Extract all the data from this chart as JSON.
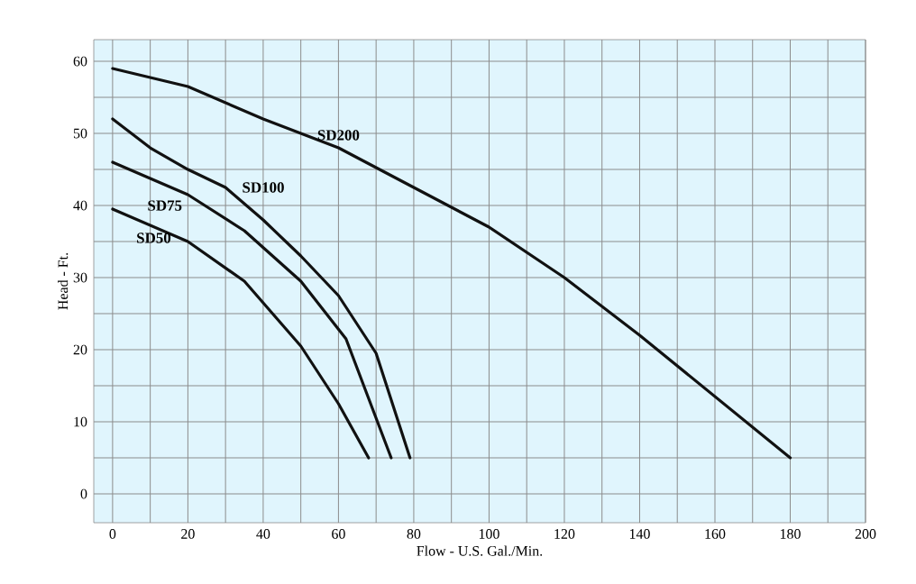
{
  "chart_data": {
    "type": "line",
    "xlabel": "Flow - U.S. Gal./Min.",
    "ylabel": "Head - Ft.",
    "xlim": [
      -5,
      200
    ],
    "ylim": [
      -4,
      63
    ],
    "xticks": [
      0,
      {
        "value": 10,
        "label": null
      },
      20,
      {
        "value": 30,
        "label": null
      },
      40,
      {
        "value": 50,
        "label": null
      },
      60,
      {
        "value": 70,
        "label": null
      },
      80,
      {
        "value": 90,
        "label": null
      },
      100,
      {
        "value": 110,
        "label": null
      },
      120,
      {
        "value": 130,
        "label": null
      },
      140,
      {
        "value": 150,
        "label": null
      },
      160,
      {
        "value": 170,
        "label": null
      },
      180,
      {
        "value": 190,
        "label": null
      },
      200
    ],
    "yticks": [
      0,
      {
        "value": 5,
        "label": null
      },
      10,
      {
        "value": 15,
        "label": null
      },
      20,
      {
        "value": 25,
        "label": null
      },
      30,
      {
        "value": 35,
        "label": null
      },
      40,
      {
        "value": 45,
        "label": null
      },
      50,
      {
        "value": 55,
        "label": null
      },
      60
    ],
    "grid": true,
    "marker": "none",
    "line_style": "solid",
    "series": [
      {
        "name": "SD50",
        "color": "#111111",
        "x": [
          0,
          20,
          35,
          50,
          60,
          68
        ],
        "values": [
          39.5,
          35,
          29.5,
          20.5,
          12.5,
          5
        ]
      },
      {
        "name": "SD75",
        "color": "#111111",
        "x": [
          0,
          20,
          35,
          50,
          62,
          74
        ],
        "values": [
          46,
          41.5,
          36.5,
          29.5,
          21.5,
          5
        ]
      },
      {
        "name": "SD100",
        "color": "#111111",
        "x": [
          0,
          10,
          20,
          30,
          40,
          50,
          60,
          70,
          79
        ],
        "values": [
          52,
          48,
          45,
          42.5,
          38,
          33,
          27.5,
          19.5,
          5
        ]
      },
      {
        "name": "SD200",
        "color": "#111111",
        "x": [
          0,
          20,
          40,
          60,
          80,
          100,
          120,
          140,
          160,
          180
        ],
        "values": [
          59,
          56.5,
          52,
          48,
          42.5,
          37,
          30,
          22,
          13.5,
          5
        ]
      }
    ]
  }
}
